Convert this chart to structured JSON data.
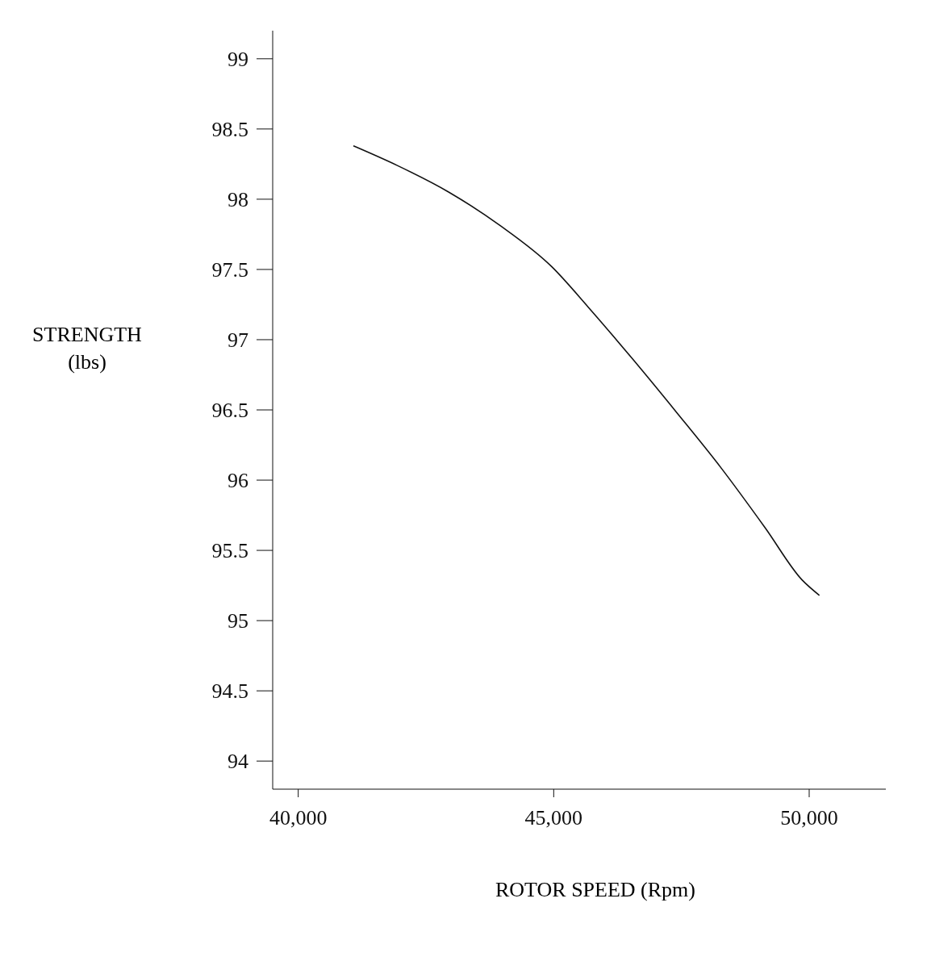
{
  "chart_data": {
    "type": "line",
    "xlabel": "ROTOR  SPEED (Rpm)",
    "ylabel": "STRENGTH\n(lbs)",
    "x": [
      41080,
      41940,
      42950,
      43960,
      44960,
      45680,
      46550,
      47410,
      48270,
      49140,
      49860,
      50200
    ],
    "series": [
      {
        "color": "#111111",
        "values": [
          98.38,
          98.24,
          98.05,
          97.81,
          97.52,
          97.23,
          96.86,
          96.48,
          96.09,
          95.66,
          95.29,
          95.18
        ]
      }
    ],
    "xlim": [
      39500,
      51500
    ],
    "xticks": [
      {
        "value": 40000,
        "label": "40,000"
      },
      {
        "value": 45000,
        "label": "45,000"
      },
      {
        "value": 50000,
        "label": "50,000"
      }
    ],
    "ylim": [
      93.8,
      99.2
    ],
    "yticks": [
      94,
      94.5,
      95,
      95.5,
      96,
      96.5,
      97,
      97.5,
      98,
      98.5,
      99
    ],
    "grid": false,
    "legend": false,
    "marker": "none",
    "line_style": "solid"
  }
}
